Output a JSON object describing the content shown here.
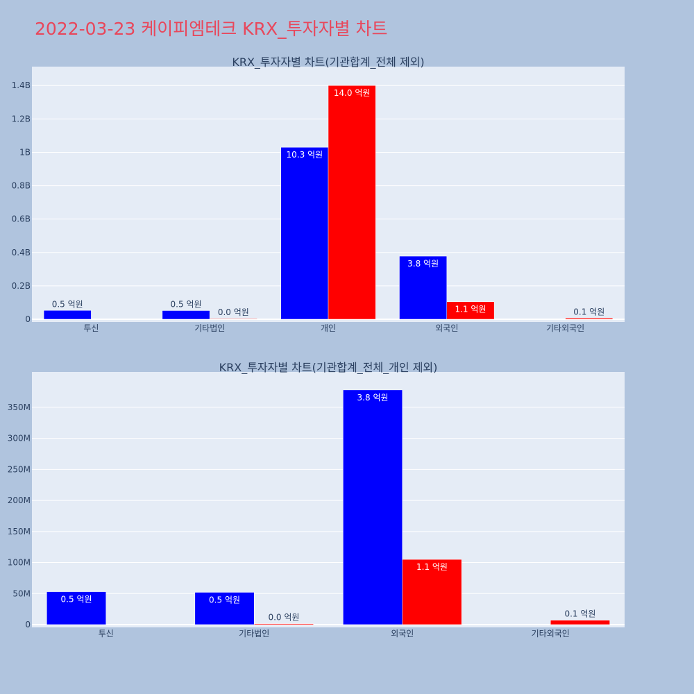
{
  "page_title": "2022-03-23 케이피엠테크 KRX_투자자별 차트",
  "colors": {
    "series_a": "#0000ff",
    "series_b": "#ff0000",
    "plot_bg": "#e5ecf6",
    "page_bg": "#b0c4de",
    "title": "#e8475b"
  },
  "chart_data": [
    {
      "type": "bar",
      "title": "KRX_투자자별 차트(기관합계_전체 제외)",
      "categories": [
        "투신",
        "기타법인",
        "개인",
        "외국인",
        "기타외국인"
      ],
      "series": [
        {
          "color": "#0000ff",
          "values": [
            53000000,
            52000000,
            1030000000,
            378000000,
            null
          ],
          "labels": [
            "0.5 억원",
            "0.5 억원",
            "10.3 억원",
            "3.8 억원",
            ""
          ]
        },
        {
          "color": "#ff0000",
          "values": [
            null,
            1500000,
            1400000000,
            105000000,
            7000000
          ],
          "labels": [
            "",
            "0.0 억원",
            "14.0 억원",
            "1.1 억원",
            "0.1 억원"
          ]
        }
      ],
      "yticks": [
        0,
        200000000,
        400000000,
        600000000,
        800000000,
        1000000000,
        1200000000,
        1400000000
      ],
      "yticklabels": [
        "0",
        "0.2B",
        "0.4B",
        "0.6B",
        "0.8B",
        "1B",
        "1.2B",
        "1.4B"
      ],
      "ylim": [
        0,
        1480000000
      ],
      "grid": true,
      "legend": "none"
    },
    {
      "type": "bar",
      "title": "KRX_투자자별 차트(기관합계_전체_개인 제외)",
      "categories": [
        "투신",
        "기타법인",
        "외국인",
        "기타외국인"
      ],
      "series": [
        {
          "color": "#0000ff",
          "values": [
            53000000,
            52000000,
            378000000,
            null
          ],
          "labels": [
            "0.5 억원",
            "0.5 억원",
            "3.8 억원",
            ""
          ]
        },
        {
          "color": "#ff0000",
          "values": [
            null,
            1500000,
            105000000,
            7000000
          ],
          "labels": [
            "",
            "0.0 억원",
            "1.1 억원",
            "0.1 억원"
          ]
        }
      ],
      "yticks": [
        0,
        50000000,
        100000000,
        150000000,
        200000000,
        250000000,
        300000000,
        350000000
      ],
      "yticklabels": [
        "0",
        "50M",
        "100M",
        "150M",
        "200M",
        "250M",
        "300M",
        "350M"
      ],
      "ylim": [
        0,
        398000000
      ],
      "grid": true,
      "legend": "none"
    }
  ]
}
